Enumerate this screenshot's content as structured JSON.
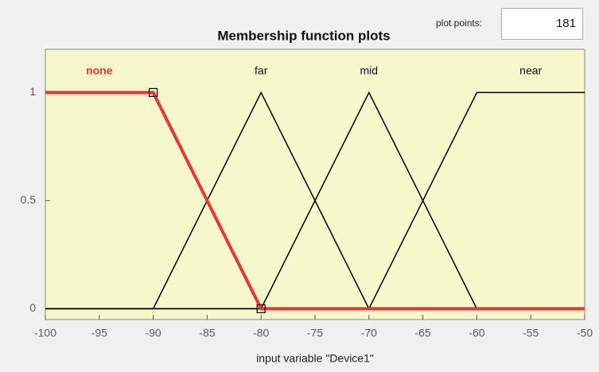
{
  "ui": {
    "plot_points_label": "plot points:",
    "plot_points": 181
  },
  "chart_data": {
    "type": "line",
    "title": "Membership function plots",
    "xlabel": "input variable \"Device1\"",
    "xlim": [
      -100,
      -50
    ],
    "ylim": [
      -0.05,
      1.2
    ],
    "xticks": [
      -100,
      -95,
      -90,
      -85,
      -80,
      -75,
      -70,
      -65,
      -60,
      -55,
      -50
    ],
    "yticks": [
      0,
      0.5,
      1
    ],
    "series": [
      {
        "name": "none",
        "color": "#ee3333",
        "selected": true,
        "x": [
          -100,
          -90,
          -80,
          -50
        ],
        "values": [
          1,
          1,
          0,
          0
        ]
      },
      {
        "name": "far",
        "color": "#000000",
        "x": [
          -100,
          -90,
          -80,
          -70,
          -50
        ],
        "values": [
          0,
          0,
          1,
          0,
          0
        ]
      },
      {
        "name": "mid",
        "color": "#000000",
        "x": [
          -100,
          -80,
          -70,
          -60,
          -50
        ],
        "values": [
          0,
          0,
          1,
          0,
          0
        ]
      },
      {
        "name": "near",
        "color": "#000000",
        "x": [
          -100,
          -70,
          -60,
          -50
        ],
        "values": [
          0,
          0,
          1,
          1
        ]
      }
    ]
  }
}
